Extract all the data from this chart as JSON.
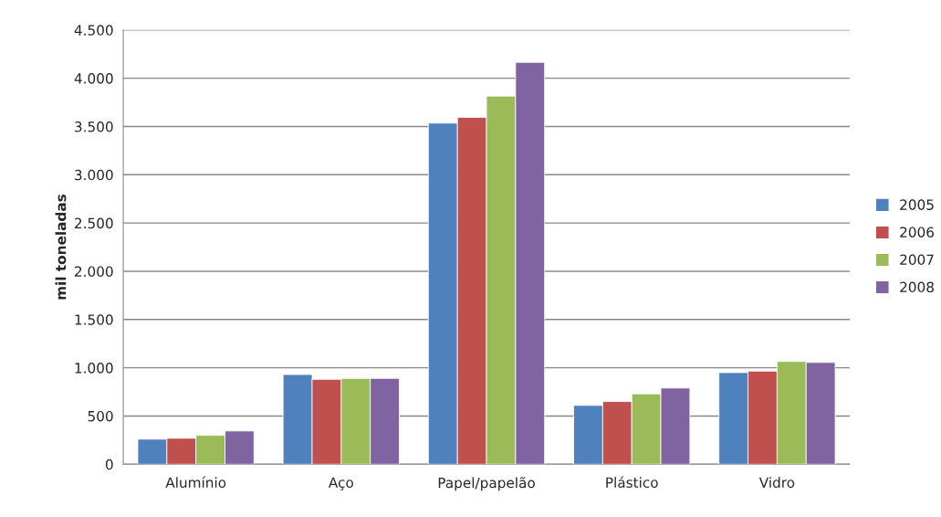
{
  "chart_data": {
    "type": "bar",
    "ylabel": "mil toneladas",
    "categories": [
      "Alumínio",
      "Aço",
      "Papel/papelão",
      "Plástico",
      "Vidro"
    ],
    "series": [
      {
        "name": "2005",
        "color": "#4f81bd",
        "values": [
          260,
          930,
          3535,
          610,
          950
        ]
      },
      {
        "name": "2006",
        "color": "#c0504d",
        "values": [
          270,
          880,
          3595,
          650,
          965
        ]
      },
      {
        "name": "2007",
        "color": "#9bbb59",
        "values": [
          300,
          890,
          3815,
          730,
          1065
        ]
      },
      {
        "name": "2008",
        "color": "#8064a2",
        "values": [
          345,
          890,
          4165,
          790,
          1055
        ]
      }
    ],
    "ylim": [
      0,
      4500
    ],
    "yticks": [
      0,
      500,
      {
        "value": 1000,
        "label": "1.000"
      },
      {
        "value": 1500,
        "label": "1.500"
      },
      {
        "value": 2000,
        "label": "2.000"
      },
      {
        "value": 2500,
        "label": "2.500"
      },
      {
        "value": 3000,
        "label": "3.000"
      },
      {
        "value": 3500,
        "label": "3.500"
      },
      {
        "value": 4000,
        "label": "4.000"
      },
      {
        "value": 4500,
        "label": "4.500"
      }
    ],
    "grid": "y",
    "legend": "right"
  }
}
